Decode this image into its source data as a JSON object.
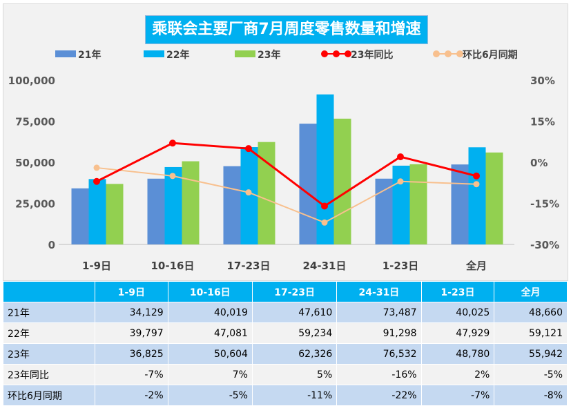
{
  "chart_data": {
    "type": "bar+line",
    "title": "乘联会主要厂商7月周度零售数量和增速",
    "categories": [
      "1-9日",
      "10-16日",
      "17-23日",
      "24-31日",
      "1-23日",
      "全月"
    ],
    "series": [
      {
        "name": "21年",
        "type": "bar",
        "color": "#5b8fd6",
        "values": [
          34129,
          40019,
          47610,
          73487,
          40025,
          48660
        ]
      },
      {
        "name": "22年",
        "type": "bar",
        "color": "#00b0f0",
        "values": [
          39797,
          47081,
          59234,
          91298,
          47929,
          59121
        ]
      },
      {
        "name": "23年",
        "type": "bar",
        "color": "#92d050",
        "values": [
          36825,
          50604,
          62326,
          76532,
          48780,
          55942
        ]
      },
      {
        "name": "23年同比",
        "type": "line",
        "axis": "right",
        "color": "#ff0000",
        "values": [
          -7,
          7,
          5,
          -16,
          2,
          -5
        ]
      },
      {
        "name": "环比6月同期",
        "type": "line",
        "axis": "right",
        "color": "#f8c08e",
        "values": [
          -2,
          -5,
          -11,
          -22,
          -7,
          -8
        ]
      }
    ],
    "y_left": {
      "range": [
        0,
        100000
      ],
      "ticks": [
        "0",
        "25,000",
        "50,000",
        "75,000",
        "100,000"
      ]
    },
    "y_right": {
      "range": [
        -30,
        30
      ],
      "ticks": [
        "-30%",
        "-15%",
        "0%",
        "15%",
        "30%"
      ]
    },
    "legend": "top",
    "grid": false
  },
  "table": {
    "headers": [
      "",
      "1-9日",
      "10-16日",
      "17-23日",
      "24-31日",
      "1-23日",
      "全月"
    ],
    "rows": [
      [
        "21年",
        "34,129",
        "40,019",
        "47,610",
        "73,487",
        "40,025",
        "48,660"
      ],
      [
        "22年",
        "39,797",
        "47,081",
        "59,234",
        "91,298",
        "47,929",
        "59,121"
      ],
      [
        "23年",
        "36,825",
        "50,604",
        "62,326",
        "76,532",
        "48,780",
        "55,942"
      ],
      [
        "23年同比",
        "-7%",
        "7%",
        "5%",
        "-16%",
        "2%",
        "-5%"
      ],
      [
        "环比6月同期",
        "-2%",
        "-5%",
        "-11%",
        "-22%",
        "-7%",
        "-8%"
      ]
    ]
  }
}
